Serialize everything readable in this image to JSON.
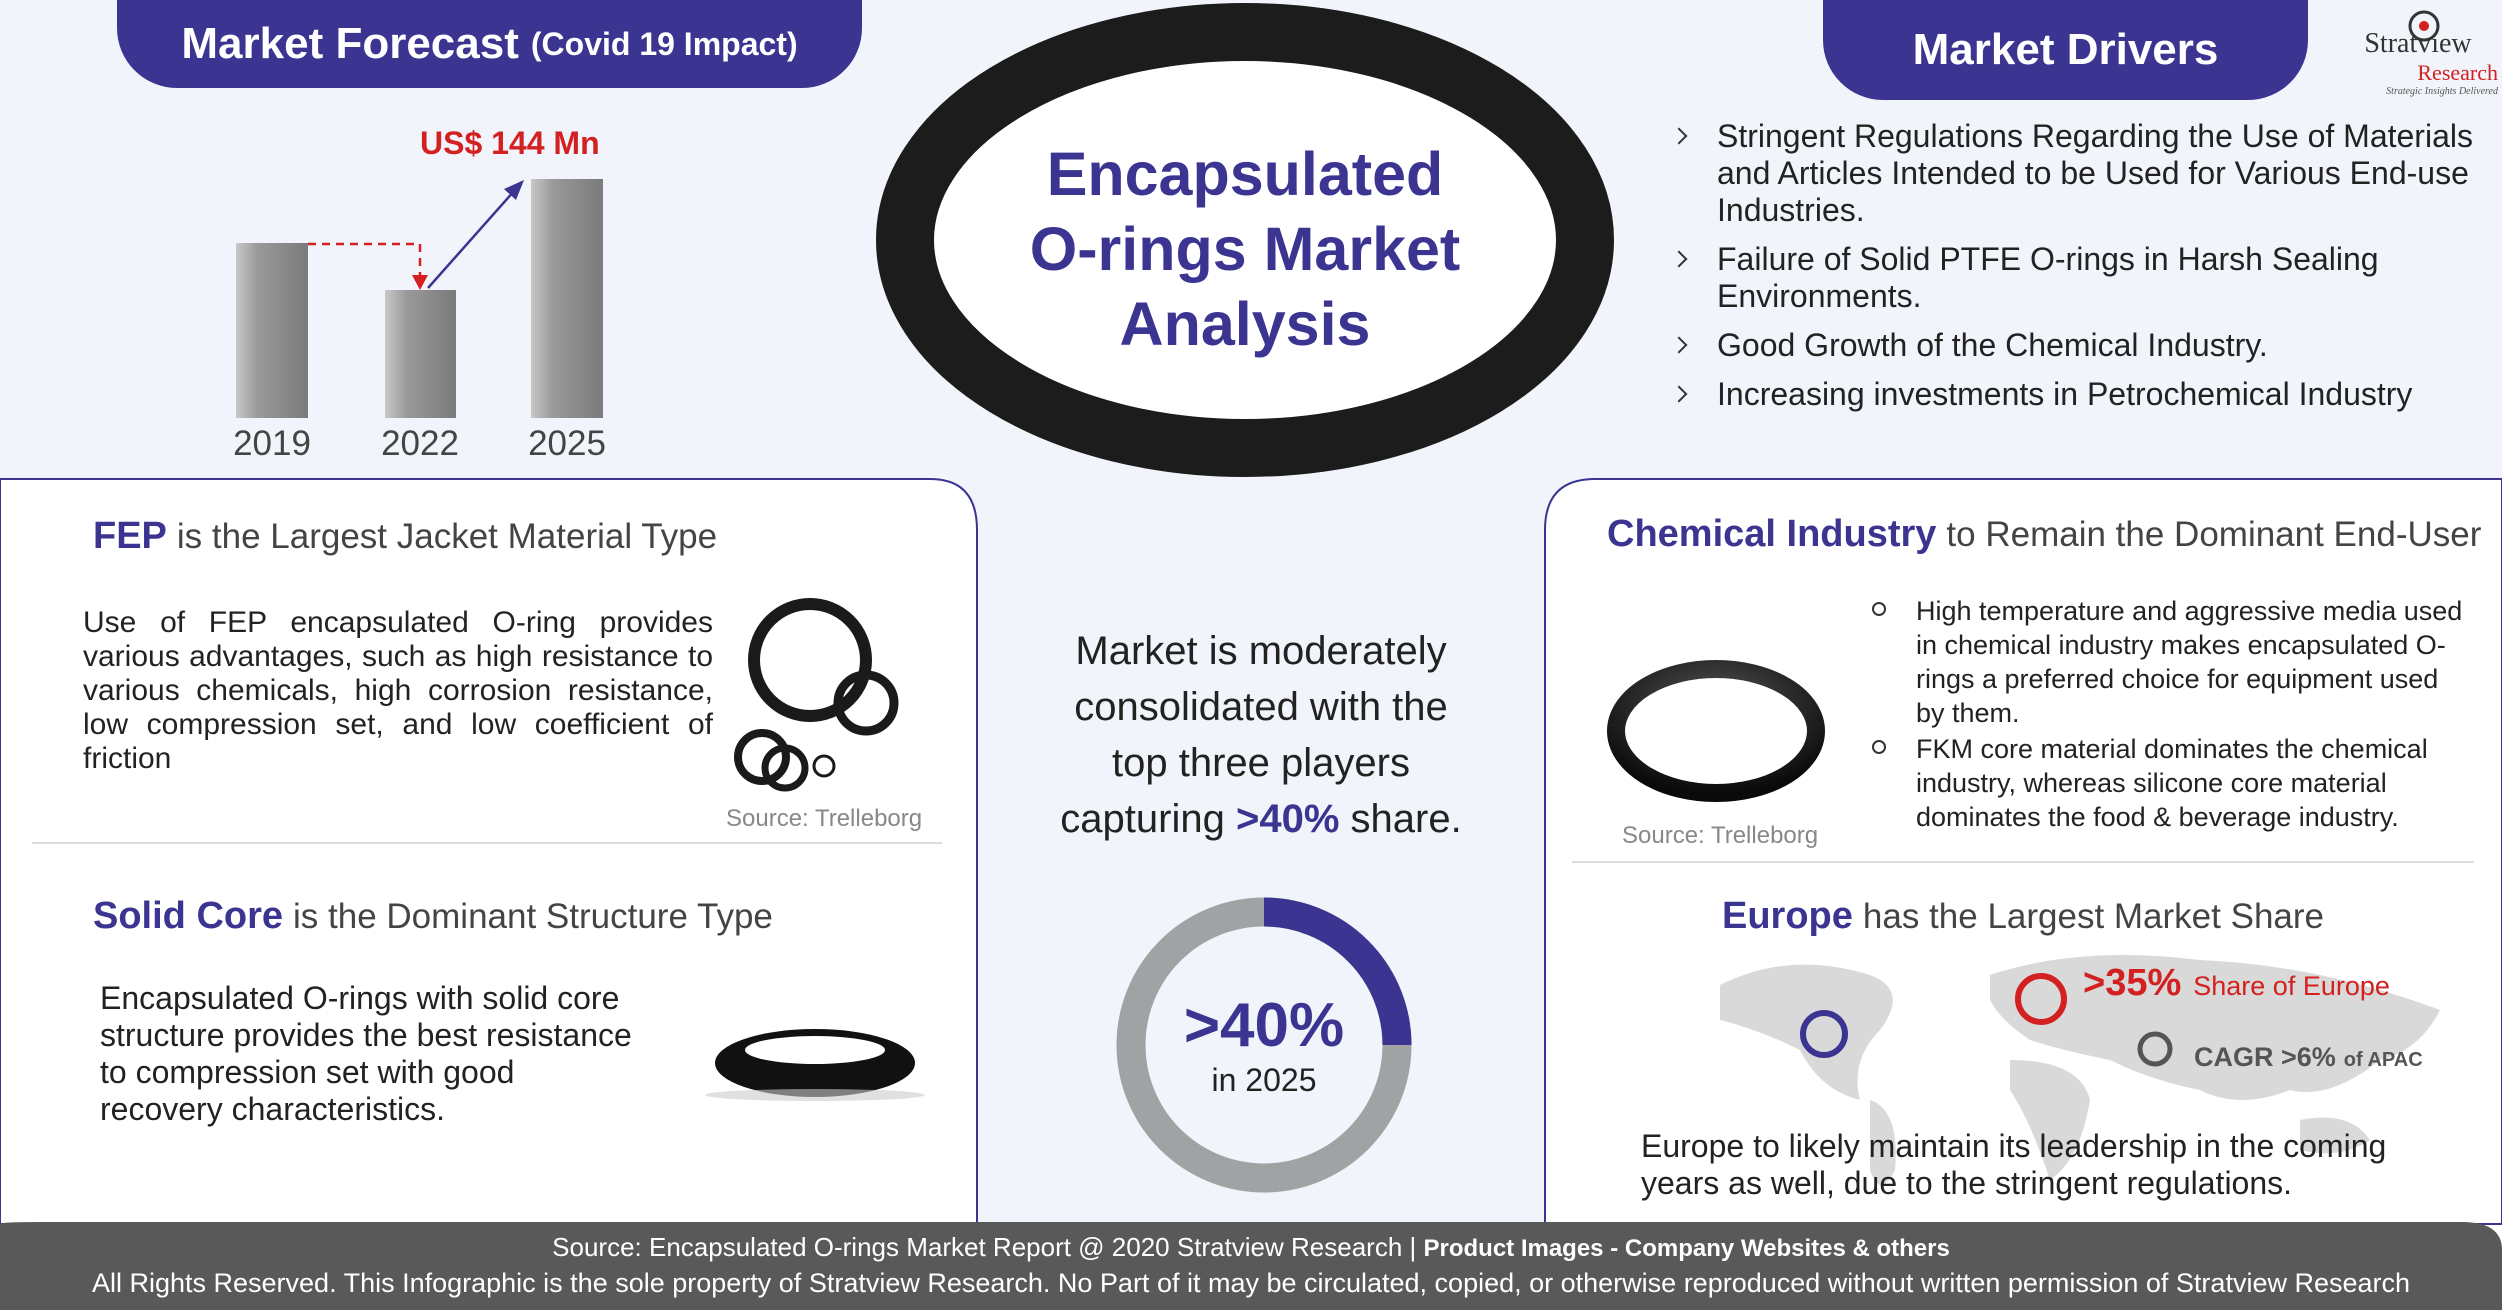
{
  "header": {
    "left_title": "Market Forecast",
    "left_subtitle": "(Covid 19 Impact)",
    "center_title": [
      "Encapsulated",
      "O-rings Market",
      "Analysis"
    ],
    "right_title": "Market Drivers"
  },
  "logo": {
    "name": "Stratview",
    "sub": "Research",
    "tagline": "Strategic Insights Delivered"
  },
  "forecast": {
    "value_label": "US$ 144 Mn",
    "years": [
      "2019",
      "2022",
      "2025"
    ]
  },
  "drivers": [
    "Stringent Regulations Regarding the Use of Materials and Articles Intended to be Used for Various End-use Industries.",
    "Failure of Solid PTFE O-rings in Harsh Sealing Environments.",
    "Good Growth of the Chemical Industry.",
    "Increasing investments in Petrochemical Industry"
  ],
  "fep": {
    "highlight": "FEP",
    "title": "is the Largest Jacket Material Type",
    "text": "Use of FEP encapsulated O-ring provides various advantages, such as high resistance to various chemicals, high corrosion resistance, low compression set, and low coefficient of friction",
    "source": "Source: Trelleborg"
  },
  "solid_core": {
    "highlight": "Solid Core",
    "title": "is the Dominant Structure Type",
    "text": "Encapsulated O-rings with solid core structure provides the best resistance to compression set with good recovery characteristics."
  },
  "center": {
    "text": "Market is moderately consolidated with the top three players capturing",
    "highlight": ">40%",
    "text_end": "share.",
    "donut_value": ">40%",
    "donut_sub": "in 2025"
  },
  "chemical": {
    "highlight": "Chemical Industry",
    "title": "to Remain the Dominant End-User",
    "bullets": [
      "High temperature and aggressive media used in chemical industry makes encapsulated O-rings a preferred choice for equipment used by them.",
      "FKM core material dominates the chemical industry, whereas silicone core material dominates the food & beverage industry."
    ],
    "source": "Source: Trelleborg"
  },
  "europe": {
    "highlight": "Europe",
    "title": "has the Largest Market Share",
    "share": ">35%",
    "share_label": "Share of Europe",
    "cagr": "CAGR >6%",
    "cagr_label": "of APAC",
    "text": "Europe to likely maintain its leadership in the coming years as well, due to the stringent regulations."
  },
  "footer": {
    "source": "Source: Encapsulated O-rings Market Report @ 2020 Stratview Research |",
    "product": "Product Images  - Company Websites & others",
    "rights": "All Rights Reserved. This Infographic is the sole property of Stratview Research. No Part of it may be circulated, copied, or otherwise reproduced without written permission of Stratview Research"
  }
}
